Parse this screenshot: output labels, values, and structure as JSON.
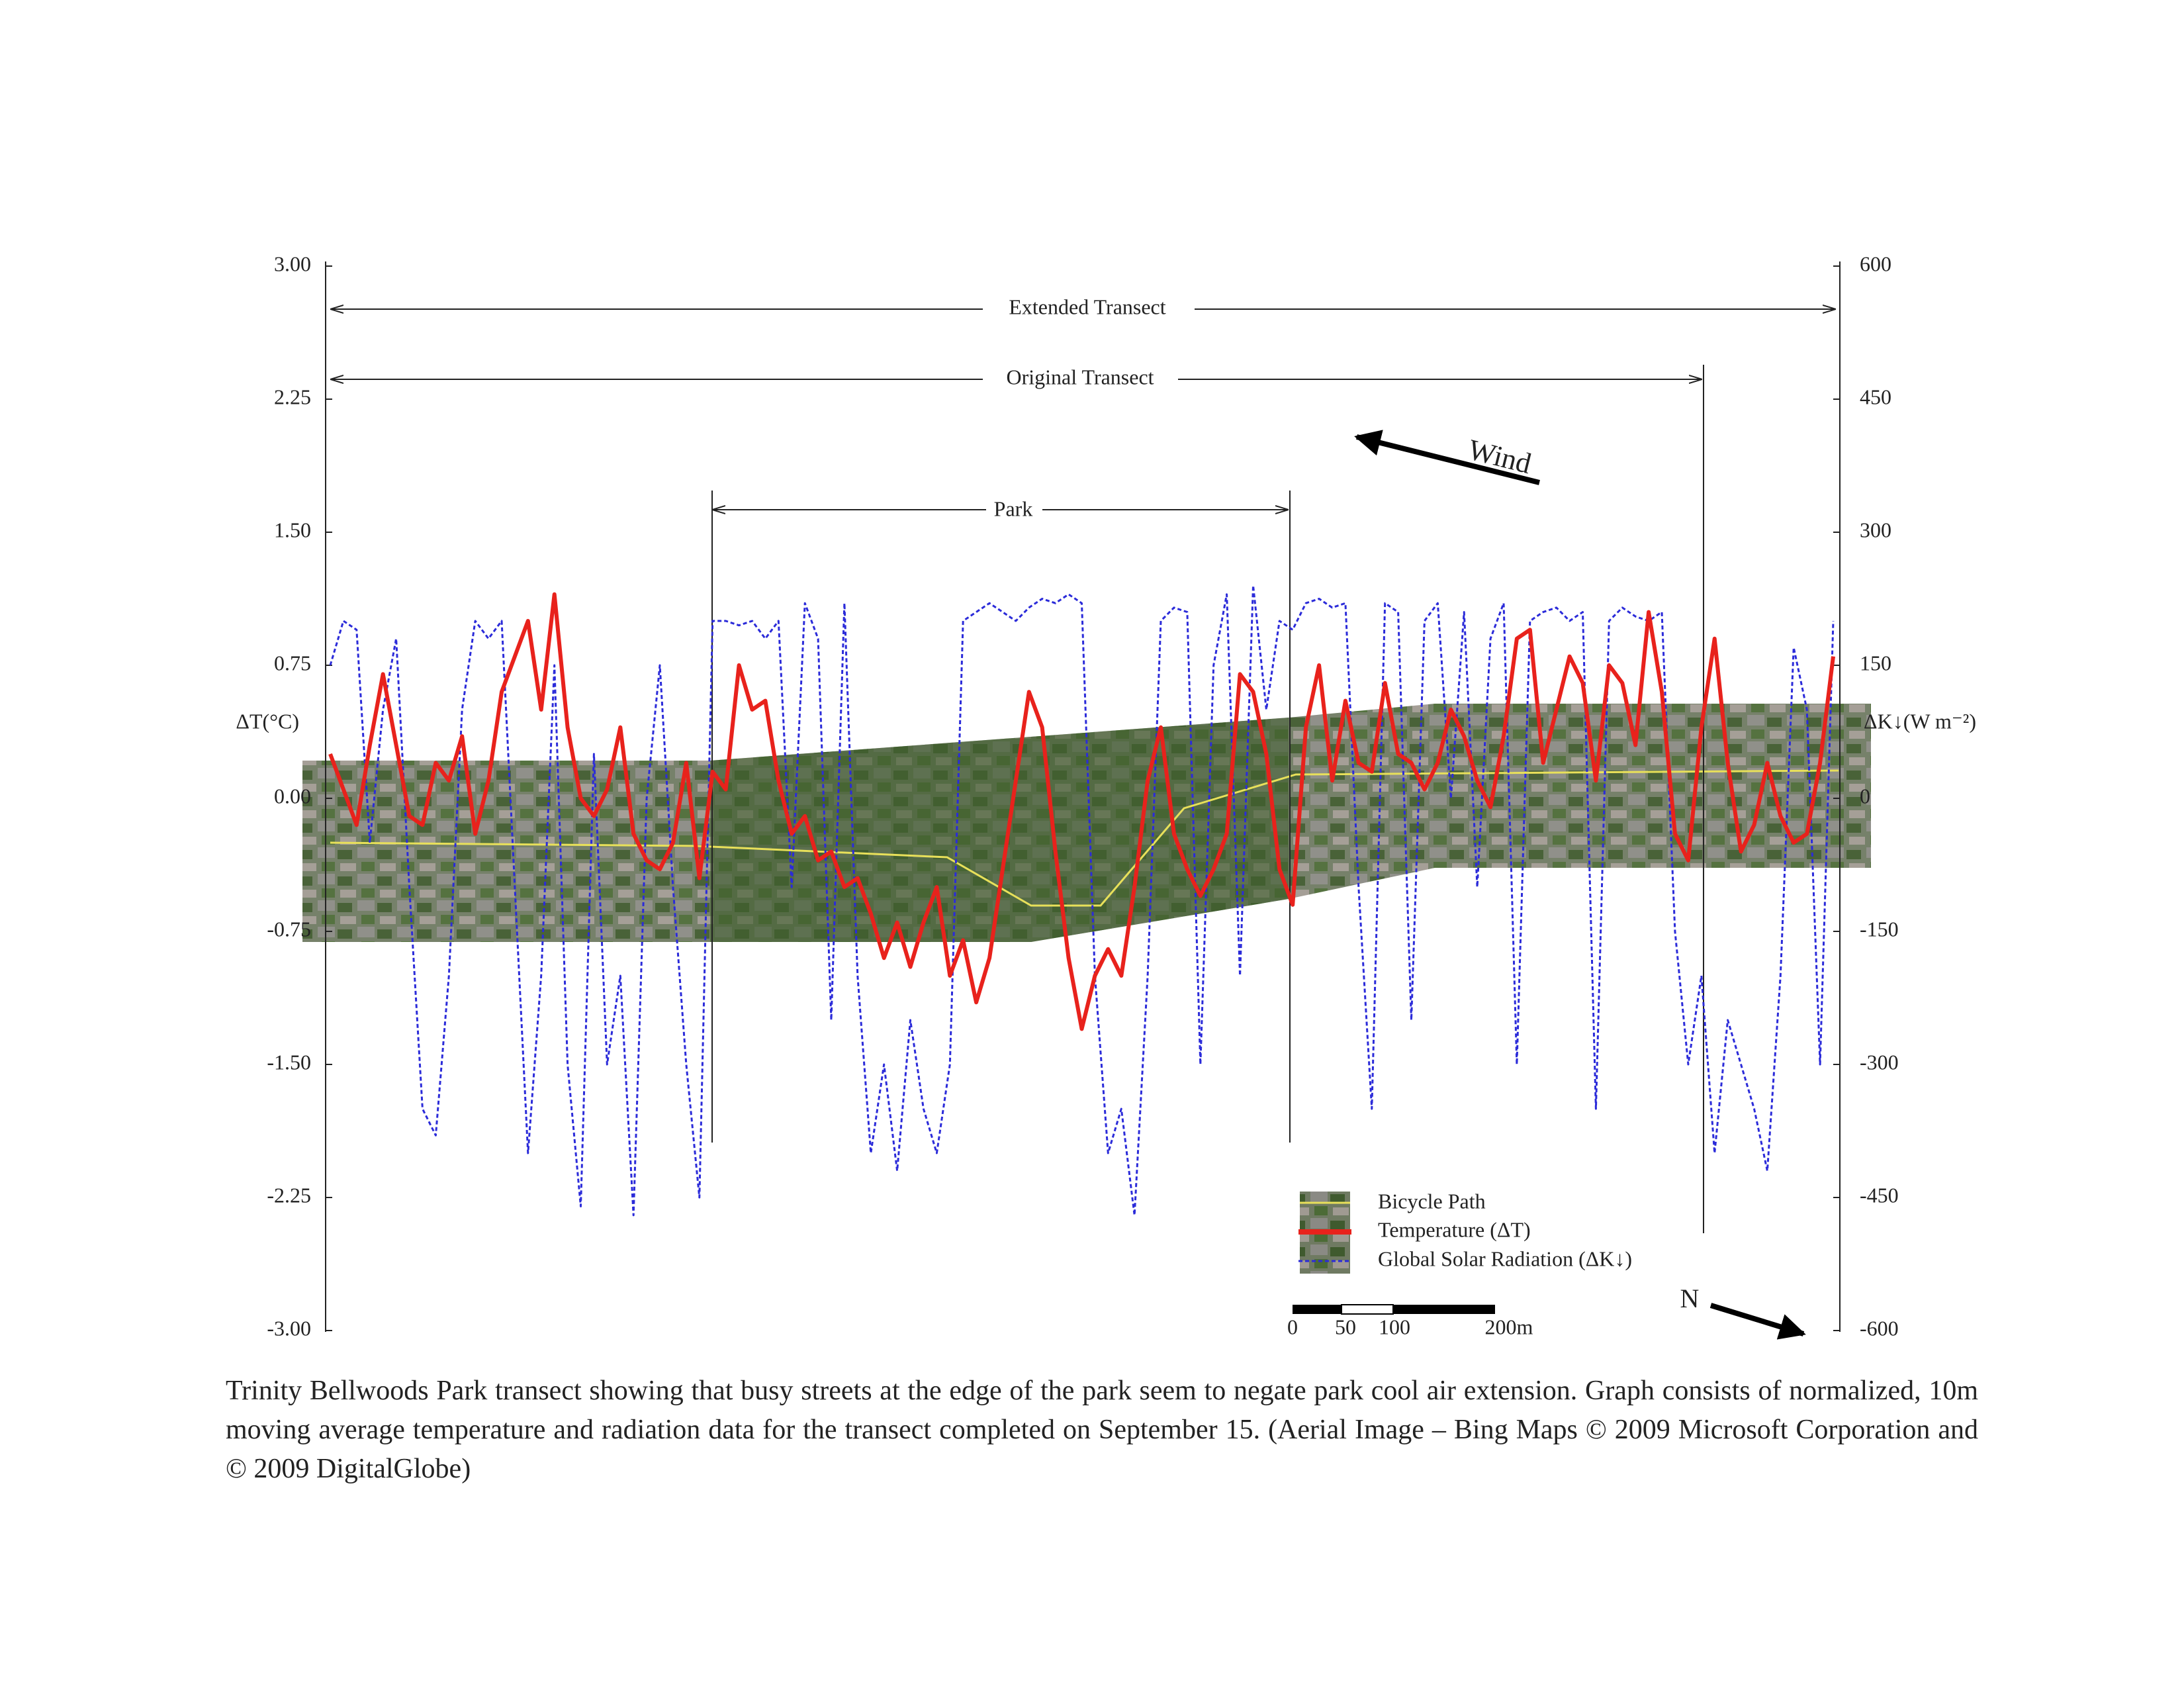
{
  "chart_data": {
    "type": "line",
    "ylabel": "ΔT(°C)",
    "y2label": "ΔK↓(W m⁻²)",
    "ylim": [
      -3,
      3
    ],
    "yticks": [
      {
        "value": 3,
        "label": "3.00"
      },
      {
        "value": 2.25,
        "label": "2.25"
      },
      {
        "value": 1.5,
        "label": "1.50"
      },
      {
        "value": 0.75,
        "label": "0.75"
      },
      {
        "value": 0,
        "label": "0.00"
      },
      {
        "value": -0.75,
        "label": "-0.75"
      },
      {
        "value": -1.5,
        "label": "-1.50"
      },
      {
        "value": -2.25,
        "label": "-2.25"
      },
      {
        "value": -3,
        "label": "-3.00"
      }
    ],
    "y2lim": [
      -600,
      600
    ],
    "y2ticks": [
      600,
      450,
      300,
      150,
      0,
      -150,
      -300,
      -450,
      -600
    ],
    "series": [
      {
        "name": "Temperature (ΔT)",
        "color": "#e8221c",
        "values": [
          0.25,
          0.05,
          -0.15,
          0.3,
          0.7,
          0.3,
          -0.1,
          -0.15,
          0.2,
          0.1,
          0.35,
          -0.2,
          0.1,
          0.6,
          0.8,
          1.0,
          0.5,
          1.15,
          0.4,
          0.0,
          -0.1,
          0.05,
          0.4,
          -0.2,
          -0.35,
          -0.4,
          -0.25,
          0.2,
          -0.45,
          0.15,
          0.05,
          0.75,
          0.5,
          0.55,
          0.1,
          -0.2,
          -0.1,
          -0.35,
          -0.3,
          -0.5,
          -0.45,
          -0.65,
          -0.9,
          -0.7,
          -0.95,
          -0.7,
          -0.5,
          -1.0,
          -0.8,
          -1.15,
          -0.9,
          -0.4,
          0.1,
          0.6,
          0.4,
          -0.3,
          -0.9,
          -1.3,
          -1.0,
          -0.85,
          -1.0,
          -0.5,
          0.1,
          0.4,
          -0.2,
          -0.4,
          -0.55,
          -0.4,
          -0.2,
          0.7,
          0.6,
          0.25,
          -0.4,
          -0.6,
          0.4,
          0.75,
          0.1,
          0.55,
          0.2,
          0.15,
          0.65,
          0.25,
          0.2,
          0.05,
          0.2,
          0.5,
          0.35,
          0.1,
          -0.05,
          0.35,
          0.9,
          0.95,
          0.2,
          0.5,
          0.8,
          0.65,
          0.1,
          0.75,
          0.65,
          0.3,
          1.05,
          0.6,
          -0.2,
          -0.35,
          0.4,
          0.9,
          0.2,
          -0.3,
          -0.15,
          0.2,
          -0.1,
          -0.25,
          -0.2,
          0.2,
          0.8
        ]
      },
      {
        "name": "Global Solar Radiation (ΔK↓)",
        "color": "#2b2bd9",
        "axis": "y2",
        "values": [
          150,
          200,
          190,
          -50,
          100,
          180,
          -100,
          -350,
          -380,
          -200,
          100,
          200,
          180,
          200,
          -100,
          -400,
          -200,
          150,
          -300,
          -460,
          50,
          -300,
          -200,
          -470,
          0,
          150,
          -100,
          -300,
          -450,
          200,
          200,
          195,
          200,
          180,
          200,
          -100,
          220,
          180,
          -250,
          220,
          -200,
          -400,
          -300,
          -420,
          -250,
          -350,
          -400,
          -300,
          200,
          210,
          220,
          210,
          200,
          215,
          225,
          220,
          230,
          220,
          -200,
          -400,
          -350,
          -470,
          -200,
          200,
          215,
          210,
          -300,
          150,
          230,
          -200,
          240,
          100,
          200,
          190,
          220,
          225,
          215,
          220,
          -100,
          -350,
          220,
          210,
          -250,
          200,
          220,
          0,
          210,
          -100,
          180,
          220,
          -300,
          200,
          210,
          215,
          200,
          210,
          -350,
          200,
          215,
          205,
          200,
          210,
          -150,
          -300,
          -200,
          -400,
          -250,
          -300,
          -350,
          -420,
          -200,
          170,
          100,
          -300,
          200
        ]
      }
    ],
    "bicycle_path_label": "Bicycle Path",
    "annotations": [
      "Extended Transect",
      "Original Transect",
      "Park",
      "Wind",
      "N"
    ],
    "scale_bar": [
      "0",
      "50",
      "100",
      "200m"
    ],
    "caption": "Trinity Bellwoods Park transect showing that busy streets at the edge of the park seem to negate park cool air extension. Graph consists of normalized, 10m moving average temperature and radiation data for the transect completed on September 15.  (Aerial Image – Bing Maps © 2009 Microsoft Corporation and © 2009 DigitalGlobe)"
  }
}
